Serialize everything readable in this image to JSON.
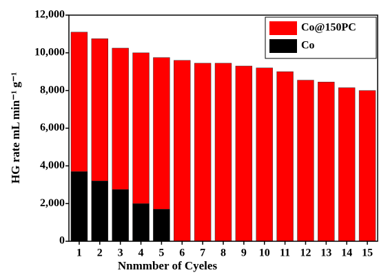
{
  "chart_data": {
    "type": "bar",
    "xlabel": "Nnmmber of Cyeles",
    "ylabel": "HG rate mL min⁻¹ g⁻¹",
    "categories": [
      "1",
      "2",
      "3",
      "4",
      "5",
      "6",
      "7",
      "8",
      "9",
      "10",
      "11",
      "12",
      "13",
      "14",
      "15"
    ],
    "series": [
      {
        "name": "Co@150PC",
        "color": "#ff0000",
        "values": [
          11100,
          10750,
          10250,
          10000,
          9750,
          9600,
          9450,
          9450,
          9300,
          9200,
          9000,
          8550,
          8450,
          8150,
          8000
        ]
      },
      {
        "name": "Co",
        "color": "#000000",
        "values": [
          3700,
          3200,
          2750,
          2000,
          1700,
          null,
          null,
          null,
          null,
          null,
          null,
          null,
          null,
          null,
          null
        ]
      }
    ],
    "ylim": [
      0,
      12000
    ],
    "yticks": [
      0,
      {
        "value": 2000,
        "label": "2,000"
      },
      {
        "value": 4000,
        "label": "4,000"
      },
      {
        "value": 6000,
        "label": "6,000"
      },
      {
        "value": 8000,
        "label": "8,000"
      },
      {
        "value": 10000,
        "label": "10,000"
      },
      {
        "value": 12000,
        "label": "12,000"
      }
    ],
    "legend": "upper right"
  }
}
